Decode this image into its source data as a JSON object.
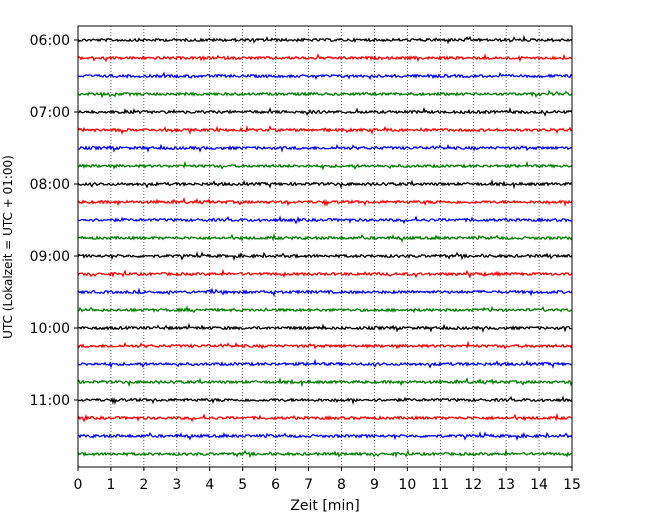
{
  "chart_data": {
    "type": "line",
    "title": "",
    "xlabel": "Zeit  [min]",
    "ylabel": "UTC (Lokalzeit = UTC + 01:00)",
    "xlim": [
      0,
      15
    ],
    "xticks": [
      "0",
      "1",
      "2",
      "3",
      "4",
      "5",
      "6",
      "7",
      "8",
      "9",
      "10",
      "11",
      "12",
      "13",
      "14",
      "15"
    ],
    "yticks": [
      "06:00",
      "07:00",
      "08:00",
      "09:00",
      "10:00",
      "11:00"
    ],
    "grid": "vertical dotted at each minute",
    "row_interval_minutes": 15,
    "rows": [
      "06:00",
      "06:15",
      "06:30",
      "06:45",
      "07:00",
      "07:15",
      "07:30",
      "07:45",
      "08:00",
      "08:15",
      "08:30",
      "08:45",
      "09:00",
      "09:15",
      "09:30",
      "09:45",
      "10:00",
      "10:15",
      "10:30",
      "10:45",
      "11:00",
      "11:15",
      "11:30",
      "11:45"
    ],
    "colors": [
      "#000000",
      "#ff0000",
      "#0000ff",
      "#008000"
    ]
  }
}
